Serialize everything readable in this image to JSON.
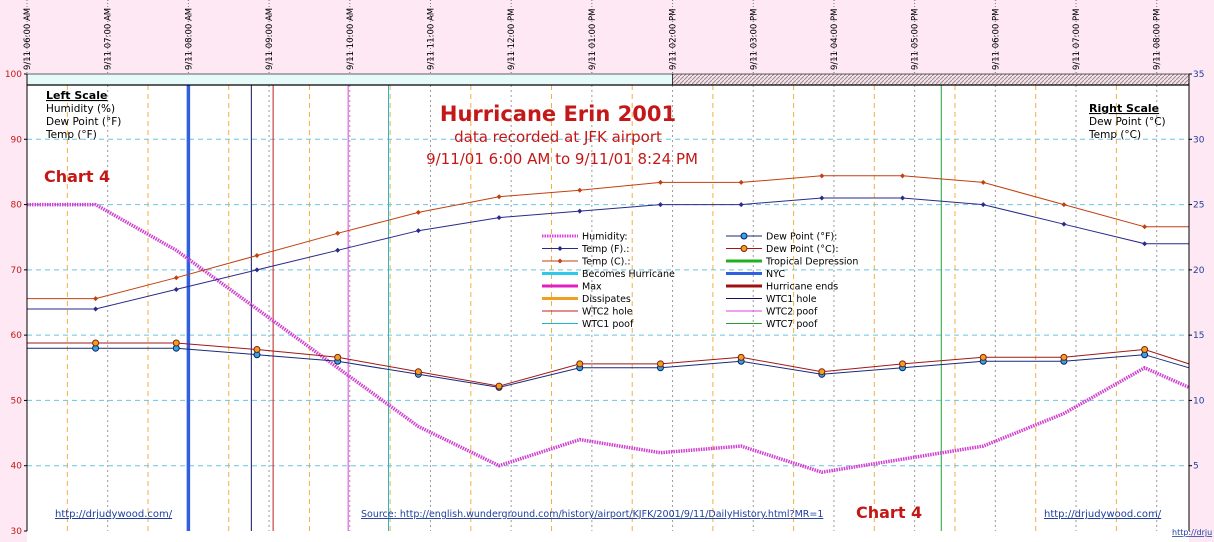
{
  "chart_data": {
    "type": "line",
    "title": "Hurricane Erin 2001",
    "subtitle": "data recorded at JFK airport",
    "date_range": "9/11/01 6:00 AM to 9/11/01 8:24 PM",
    "chart_label": "Chart 4",
    "left_scale": {
      "title": "Left Scale",
      "lines": [
        "Humidity (%)",
        "Dew Point (°F)",
        "Temp (°F)"
      ],
      "ylim": [
        30,
        100
      ],
      "ticks": [
        30,
        40,
        50,
        60,
        70,
        80,
        90,
        100
      ]
    },
    "right_scale": {
      "title": "Right Scale",
      "lines": [
        "Dew Point (°C)",
        "Temp (°C)"
      ],
      "ylim": [
        0,
        35
      ],
      "ticks": [
        5,
        10,
        15,
        20,
        25,
        30,
        35
      ]
    },
    "x_ticks": [
      "9/11 06:00 AM",
      "9/11 07:00 AM",
      "9/11 08:00 AM",
      "9/11 09:00 AM",
      "9/11 10:00 AM",
      "9/11 11:00 AM",
      "9/11 12:00 PM",
      "9/11 01:00 PM",
      "9/11 02:00 PM",
      "9/11 03:00 PM",
      "9/11 04:00 PM",
      "9/11 05:00 PM",
      "9/11 06:00 PM",
      "9/11 07:00 PM",
      "9/11 08:00 PM"
    ],
    "x_range_hours": [
      6.0,
      20.4
    ],
    "status_bar": {
      "cyan_until_hour": 14.0
    },
    "series": [
      {
        "name": "Humidity:",
        "axis": "left",
        "color": "#d040d0",
        "style": "dotted-thick",
        "x": [
          6.0,
          6.85,
          7.85,
          8.85,
          9.85,
          10.85,
          11.85,
          12.85,
          13.85,
          14.85,
          15.85,
          16.85,
          17.85,
          18.85,
          19.85,
          20.4
        ],
        "y": [
          80,
          80,
          73,
          64,
          55,
          46,
          40,
          44,
          42,
          43,
          39,
          41,
          43,
          48,
          55,
          52
        ]
      },
      {
        "name": "Temp (F).:",
        "axis": "left",
        "color": "#2a2a8a",
        "style": "line-diamond",
        "x": [
          6.0,
          6.85,
          7.85,
          8.85,
          9.85,
          10.85,
          11.85,
          12.85,
          13.85,
          14.85,
          15.85,
          16.85,
          17.85,
          18.85,
          19.85,
          20.4
        ],
        "y": [
          64,
          64,
          67,
          70,
          73,
          76,
          78,
          79,
          80,
          80,
          81,
          81,
          80,
          77,
          74,
          74
        ]
      },
      {
        "name": "Temp (C).:",
        "axis": "right",
        "color": "#c04010",
        "style": "line-diamond",
        "x": [
          6.0,
          6.85,
          7.85,
          8.85,
          9.85,
          10.85,
          11.85,
          12.85,
          13.85,
          14.85,
          15.85,
          16.85,
          17.85,
          18.85,
          19.85,
          20.4
        ],
        "y": [
          17.8,
          17.8,
          19.4,
          21.1,
          22.8,
          24.4,
          25.6,
          26.1,
          26.7,
          26.7,
          27.2,
          27.2,
          26.7,
          25.0,
          23.3,
          23.3
        ]
      },
      {
        "name": "Dew Point (°F):",
        "axis": "left",
        "color": "#1a2a7a",
        "style": "line-circle-blue",
        "x": [
          6.0,
          6.85,
          7.85,
          8.85,
          9.85,
          10.85,
          11.85,
          12.85,
          13.85,
          14.85,
          15.85,
          16.85,
          17.85,
          18.85,
          19.85,
          20.4
        ],
        "y": [
          58,
          58,
          58,
          57,
          56,
          54,
          52,
          55,
          55,
          56,
          54,
          55,
          56,
          56,
          57,
          55
        ]
      },
      {
        "name": "Dew Point (°C):",
        "axis": "right",
        "color": "#a01818",
        "style": "line-circle-orange",
        "x": [
          6.0,
          6.85,
          7.85,
          8.85,
          9.85,
          10.85,
          11.85,
          12.85,
          13.85,
          14.85,
          15.85,
          16.85,
          17.85,
          18.85,
          19.85,
          20.4
        ],
        "y": [
          14.4,
          14.4,
          14.4,
          13.9,
          13.3,
          12.2,
          11.1,
          12.8,
          12.8,
          13.3,
          12.2,
          12.8,
          13.3,
          13.3,
          13.9,
          12.8
        ]
      }
    ],
    "legend": {
      "placement": "center",
      "left_column": [
        {
          "label": "Humidity:",
          "color": "#e040e0",
          "style": "dotted-thick"
        },
        {
          "label": "Temp (F).:",
          "color": "#2a2a8a",
          "style": "line-diamond"
        },
        {
          "label": "Temp (C).:",
          "color": "#c04010",
          "style": "line-diamond"
        },
        {
          "label": "Becomes Hurricane",
          "color": "#30c8e8",
          "style": "thick"
        },
        {
          "label": "Max",
          "color": "#e020c0",
          "style": "thick"
        },
        {
          "label": "Dissipates",
          "color": "#f0a020",
          "style": "thick"
        },
        {
          "label": "WTC2 hole",
          "color": "#c02020",
          "style": "thin"
        },
        {
          "label": "WTC1 poof",
          "color": "#20b8c8",
          "style": "thin"
        }
      ],
      "right_column": [
        {
          "label": "Dew Point (°F):",
          "color": "#1a2a7a",
          "style": "line-circle-blue"
        },
        {
          "label": "Dew Point (°C):",
          "color": "#a01818",
          "style": "line-circle-orange"
        },
        {
          "label": "Tropical Depression",
          "color": "#20b020",
          "style": "thick"
        },
        {
          "label": "NYC",
          "color": "#3060e0",
          "style": "thick"
        },
        {
          "label": "Hurricane ends",
          "color": "#a01010",
          "style": "thick"
        },
        {
          "label": "WTC1 hole",
          "color": "#101060",
          "style": "thin"
        },
        {
          "label": "WTC2 poof",
          "color": "#e040e0",
          "style": "thin"
        },
        {
          "label": "WTC7 poof",
          "color": "#20a030",
          "style": "thin"
        }
      ]
    },
    "event_lines": [
      {
        "name": "NYC",
        "hour": 8.0,
        "color": "#3060e0",
        "width": 3.5
      },
      {
        "name": "WTC1 hole",
        "hour": 8.78,
        "color": "#101060",
        "width": 1
      },
      {
        "name": "WTC2 hole",
        "hour": 9.05,
        "color": "#c02020",
        "width": 1
      },
      {
        "name": "WTC2 poof",
        "hour": 9.98,
        "color": "#e040e0",
        "width": 1
      },
      {
        "name": "WTC1 poof",
        "hour": 10.48,
        "color": "#20b8c8",
        "width": 1
      },
      {
        "name": "WTC7 poof",
        "hour": 17.33,
        "color": "#20a030",
        "width": 1
      }
    ],
    "links": {
      "left": "http://drjudywood.com/",
      "source": "Source: http://english.wunderground.com/history/airport/KJFK/2001/9/11/DailyHistory.html?MR=1",
      "right": "http://drjudywood.com/",
      "corner": "http://drju"
    },
    "grid": true
  }
}
